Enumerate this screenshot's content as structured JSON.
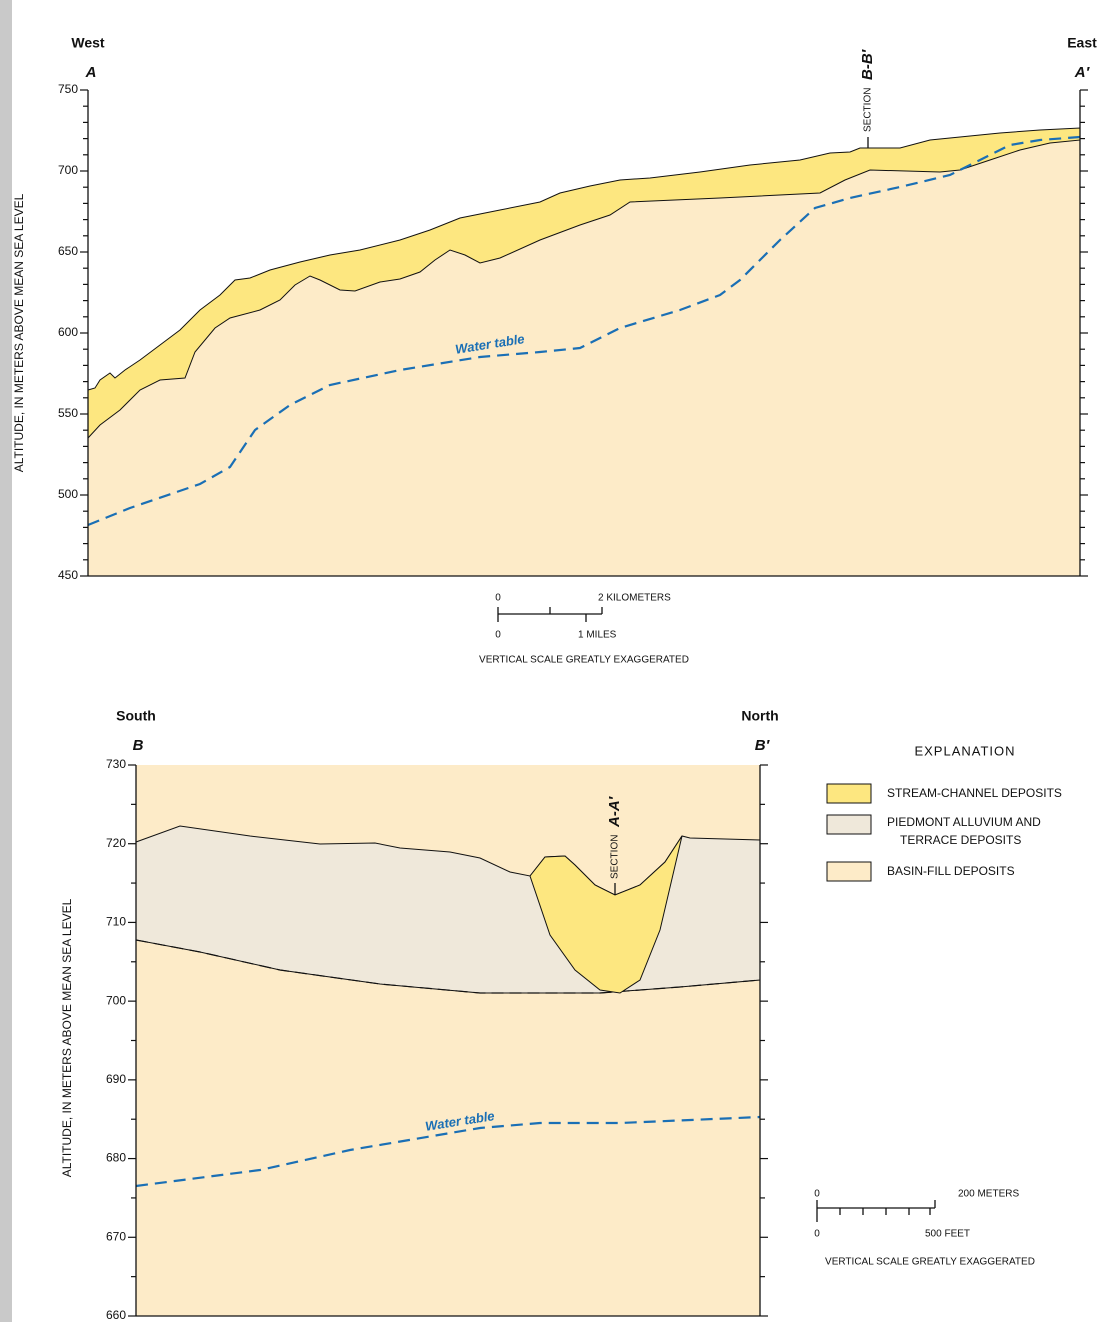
{
  "top_section": {
    "left_label": "West",
    "right_label": "East",
    "left_letter": "A",
    "right_letter": "A′",
    "y_axis_title": "ALTITUDE, IN METERS ABOVE MEAN SEA LEVEL",
    "y_ticks": [
      "750",
      "700",
      "650",
      "600",
      "550",
      "500",
      "450"
    ],
    "section_marker": {
      "prefix": "SECTION",
      "name": "B-B′"
    },
    "water_table_label": "Water table",
    "scale": {
      "km_zero": "0",
      "km_label": "2 KILOMETERS",
      "mi_zero": "0",
      "mi_label": "1 MILES",
      "note": "VERTICAL SCALE GREATLY EXAGGERATED"
    }
  },
  "bottom_section": {
    "left_label": "South",
    "right_label": "North",
    "left_letter": "B",
    "right_letter": "B′",
    "y_axis_title": "ALTITUDE, IN METERS ABOVE MEAN SEA LEVEL",
    "y_ticks": [
      "730",
      "720",
      "710",
      "700",
      "690",
      "680",
      "670",
      "660"
    ],
    "section_marker": {
      "prefix": "SECTION",
      "name": "A-A′"
    },
    "water_table_label": "Water table",
    "scale": {
      "m_zero": "0",
      "m_label": "200 METERS",
      "ft_zero": "0",
      "ft_label": "500 FEET",
      "note": "VERTICAL SCALE GREATLY EXAGGERATED"
    }
  },
  "explanation": {
    "title": "EXPLANATION",
    "items": [
      {
        "lines": [
          "STREAM-CHANNEL DEPOSITS"
        ]
      },
      {
        "lines": [
          "PIEDMONT ALLUVIUM AND",
          "TERRACE DEPOSITS"
        ]
      },
      {
        "lines": [
          "BASIN-FILL DEPOSITS"
        ]
      }
    ]
  }
}
